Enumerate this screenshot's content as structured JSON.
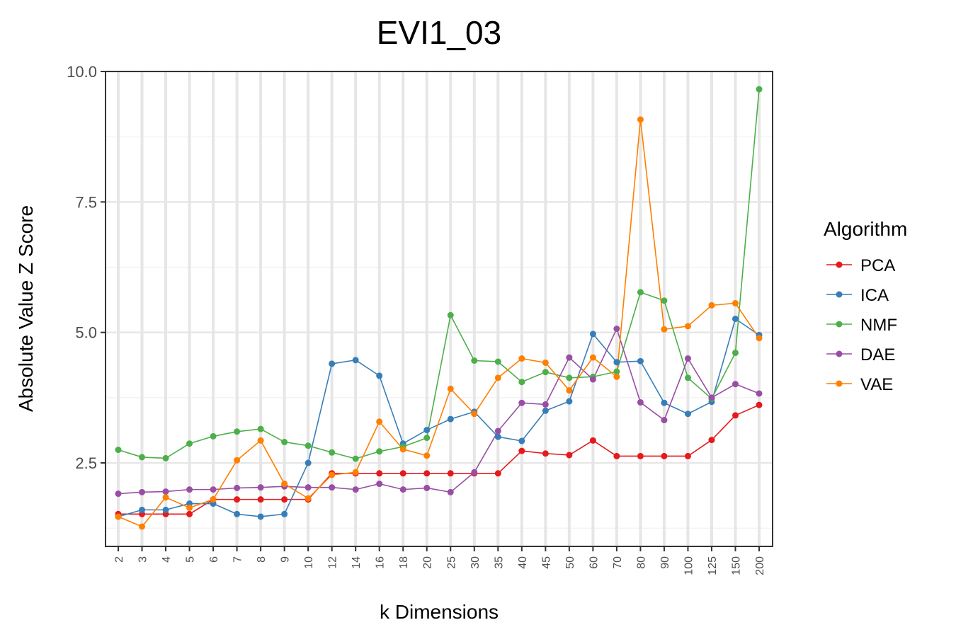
{
  "chart_data": {
    "type": "line",
    "title": "EVI1_03",
    "xlabel": "k Dimensions",
    "ylabel": "Absolute Value Z Score",
    "categories": [
      "2",
      "3",
      "4",
      "5",
      "6",
      "7",
      "8",
      "9",
      "10",
      "12",
      "14",
      "16",
      "18",
      "20",
      "25",
      "30",
      "35",
      "40",
      "45",
      "50",
      "60",
      "70",
      "80",
      "90",
      "100",
      "125",
      "150",
      "200"
    ],
    "yticks": [
      "2.5",
      "5.0",
      "7.5",
      "10.0"
    ],
    "ylim": [
      0.9,
      10.0
    ],
    "grid": true,
    "legend": {
      "title": "Algorithm",
      "position": "right"
    },
    "series": [
      {
        "name": "PCA",
        "color": "#E41A1C",
        "values": [
          1.52,
          1.52,
          1.52,
          1.52,
          1.8,
          1.8,
          1.8,
          1.8,
          1.8,
          2.3,
          2.3,
          2.3,
          2.3,
          2.3,
          2.3,
          2.3,
          2.3,
          2.73,
          2.68,
          2.65,
          2.93,
          2.63,
          2.63,
          2.63,
          2.63,
          2.94,
          3.41,
          3.61
        ]
      },
      {
        "name": "ICA",
        "color": "#377EB8",
        "values": [
          1.47,
          1.6,
          1.6,
          1.72,
          1.72,
          1.52,
          1.47,
          1.52,
          2.5,
          4.4,
          4.47,
          4.17,
          2.87,
          3.13,
          3.34,
          3.48,
          3.0,
          2.92,
          3.5,
          3.68,
          4.97,
          4.43,
          4.45,
          3.65,
          3.44,
          3.67,
          5.26,
          4.95
        ]
      },
      {
        "name": "NMF",
        "color": "#4DAF4A",
        "values": [
          2.75,
          2.61,
          2.59,
          2.87,
          3.01,
          3.1,
          3.15,
          2.9,
          2.83,
          2.7,
          2.58,
          2.72,
          2.81,
          2.98,
          5.33,
          4.46,
          4.44,
          4.05,
          4.24,
          4.13,
          4.15,
          4.25,
          5.77,
          5.61,
          4.13,
          3.73,
          4.61,
          9.66
        ]
      },
      {
        "name": "DAE",
        "color": "#984EA3",
        "values": [
          1.91,
          1.94,
          1.95,
          1.99,
          1.99,
          2.02,
          2.03,
          2.05,
          2.03,
          2.03,
          1.99,
          2.1,
          1.99,
          2.02,
          1.94,
          2.32,
          3.11,
          3.65,
          3.62,
          4.52,
          4.1,
          5.07,
          3.66,
          3.32,
          4.5,
          3.75,
          4.01,
          3.83
        ]
      },
      {
        "name": "VAE",
        "color": "#FF7F00",
        "values": [
          1.47,
          1.28,
          1.84,
          1.64,
          1.8,
          2.55,
          2.93,
          2.1,
          1.82,
          2.27,
          2.32,
          3.29,
          2.76,
          2.64,
          3.92,
          3.44,
          4.13,
          4.5,
          4.42,
          3.89,
          4.52,
          4.15,
          9.08,
          5.06,
          5.12,
          5.52,
          5.56,
          4.89
        ]
      }
    ]
  }
}
